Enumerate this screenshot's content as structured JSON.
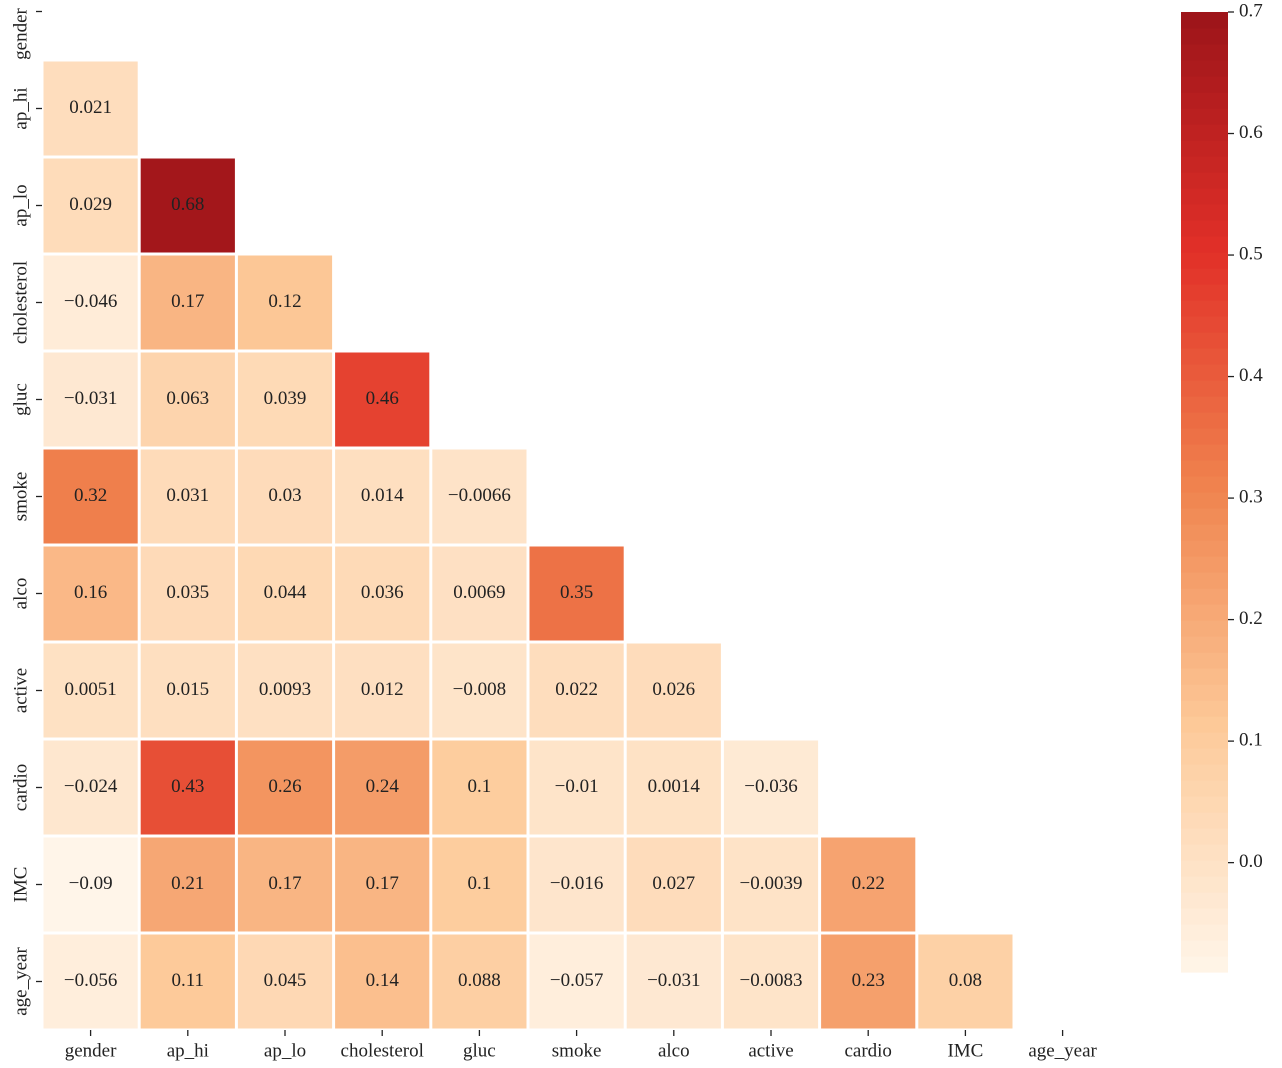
{
  "chart_data": {
    "type": "heatmap",
    "x_categories": [
      "gender",
      "ap_hi",
      "ap_lo",
      "cholesterol",
      "gluc",
      "smoke",
      "alco",
      "active",
      "cardio",
      "IMC",
      "age_year"
    ],
    "y_categories": [
      "gender",
      "ap_hi",
      "ap_lo",
      "cholesterol",
      "gluc",
      "smoke",
      "alco",
      "active",
      "cardio",
      "IMC",
      "age_year"
    ],
    "values": [
      [
        null,
        null,
        null,
        null,
        null,
        null,
        null,
        null,
        null,
        null,
        null
      ],
      [
        0.021,
        null,
        null,
        null,
        null,
        null,
        null,
        null,
        null,
        null,
        null
      ],
      [
        0.029,
        0.68,
        null,
        null,
        null,
        null,
        null,
        null,
        null,
        null,
        null
      ],
      [
        -0.046,
        0.17,
        0.12,
        null,
        null,
        null,
        null,
        null,
        null,
        null,
        null
      ],
      [
        -0.031,
        0.063,
        0.039,
        0.46,
        null,
        null,
        null,
        null,
        null,
        null,
        null
      ],
      [
        0.32,
        0.031,
        0.03,
        0.014,
        -0.0066,
        null,
        null,
        null,
        null,
        null,
        null
      ],
      [
        0.16,
        0.035,
        0.044,
        0.036,
        0.0069,
        0.35,
        null,
        null,
        null,
        null,
        null
      ],
      [
        0.0051,
        0.015,
        0.0093,
        0.012,
        -0.008,
        0.022,
        0.026,
        null,
        null,
        null,
        null
      ],
      [
        -0.024,
        0.43,
        0.26,
        0.24,
        0.1,
        -0.01,
        0.0014,
        -0.036,
        null,
        null,
        null
      ],
      [
        -0.09,
        0.21,
        0.17,
        0.17,
        0.1,
        -0.016,
        0.027,
        -0.0039,
        0.22,
        null,
        null
      ],
      [
        -0.056,
        0.11,
        0.045,
        0.14,
        0.088,
        -0.057,
        -0.031,
        -0.0083,
        0.23,
        0.08,
        null
      ]
    ],
    "value_labels": [
      [
        null,
        null,
        null,
        null,
        null,
        null,
        null,
        null,
        null,
        null,
        null
      ],
      [
        "0.021",
        null,
        null,
        null,
        null,
        null,
        null,
        null,
        null,
        null,
        null
      ],
      [
        "0.029",
        "0.68",
        null,
        null,
        null,
        null,
        null,
        null,
        null,
        null,
        null
      ],
      [
        "−0.046",
        "0.17",
        "0.12",
        null,
        null,
        null,
        null,
        null,
        null,
        null,
        null
      ],
      [
        "−0.031",
        "0.063",
        "0.039",
        "0.46",
        null,
        null,
        null,
        null,
        null,
        null,
        null
      ],
      [
        "0.32",
        "0.031",
        "0.03",
        "0.014",
        "−0.0066",
        null,
        null,
        null,
        null,
        null,
        null
      ],
      [
        "0.16",
        "0.035",
        "0.044",
        "0.036",
        "0.0069",
        "0.35",
        null,
        null,
        null,
        null,
        null
      ],
      [
        "0.0051",
        "0.015",
        "0.0093",
        "0.012",
        "−0.008",
        "0.022",
        "0.026",
        null,
        null,
        null,
        null
      ],
      [
        "−0.024",
        "0.43",
        "0.26",
        "0.24",
        "0.1",
        "−0.01",
        "0.0014",
        "−0.036",
        null,
        null,
        null
      ],
      [
        "−0.09",
        "0.21",
        "0.17",
        "0.17",
        "0.1",
        "−0.016",
        "0.027",
        "−0.0039",
        "0.22",
        null,
        null
      ],
      [
        "−0.056",
        "0.11",
        "0.045",
        "0.14",
        "0.088",
        "−0.057",
        "−0.031",
        "−0.0083",
        "0.23",
        "0.08",
        null
      ]
    ],
    "colormap": [
      "#fff5e9",
      "#fdcb9b",
      "#f0854f",
      "#e23028",
      "#9c141a"
    ],
    "clim": [
      -0.09,
      0.7
    ],
    "cticks": [
      {
        "value": 0,
        "label": "0.0"
      },
      0.1,
      0.2,
      0.3,
      0.4,
      0.5,
      0.6,
      0.7
    ]
  }
}
